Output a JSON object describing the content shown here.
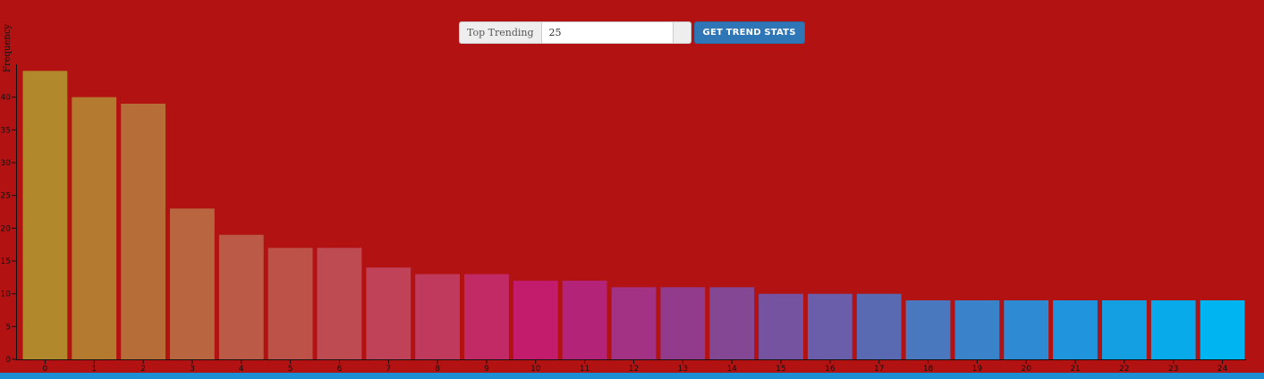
{
  "controls": {
    "addon_label": "Top Trending",
    "count_value": "25",
    "button_label": "GET TREND STATS"
  },
  "chart_data": {
    "type": "bar",
    "ylabel": "Frequency",
    "xlabel": "",
    "ylim": [
      0,
      45
    ],
    "yticks": [
      0,
      5,
      10,
      15,
      20,
      25,
      30,
      35,
      40
    ],
    "categories": [
      "0",
      "1",
      "2",
      "3",
      "4",
      "5",
      "6",
      "7",
      "8",
      "9",
      "10",
      "11",
      "12",
      "13",
      "14",
      "15",
      "16",
      "17",
      "18",
      "19",
      "20",
      "21",
      "22",
      "23",
      "24"
    ],
    "values": [
      44,
      40,
      39,
      23,
      19,
      17,
      17,
      14,
      13,
      13,
      12,
      12,
      11,
      11,
      11,
      10,
      10,
      10,
      9,
      9,
      9,
      9,
      9,
      9,
      9
    ],
    "colors": [
      "#b2882c",
      "#b47b30",
      "#b66d38",
      "#b96540",
      "#bb5a47",
      "#bd5248",
      "#be4a52",
      "#bf4258",
      "#c03a5d",
      "#c22a65",
      "#c41c6d",
      "#b32478",
      "#a33184",
      "#923b8c",
      "#834794",
      "#7653a1",
      "#6a5da9",
      "#5a6ab2",
      "#4a78bf",
      "#3a82c9",
      "#2e8bd3",
      "#2094dc",
      "#149fe3",
      "#08aaea",
      "#00b4f2"
    ],
    "grid": false,
    "legend": "none"
  }
}
